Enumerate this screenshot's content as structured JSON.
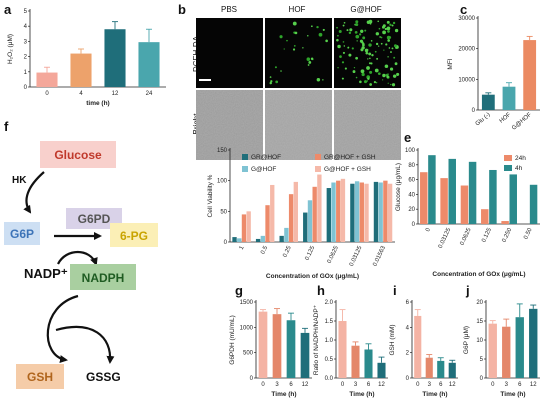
{
  "panels": {
    "a": "a",
    "b": "b",
    "c": "c",
    "d": "d",
    "e": "e",
    "f": "f",
    "g": "g",
    "h": "h",
    "i": "i",
    "j": "j"
  },
  "image_panel": {
    "columns": [
      "PBS",
      "HOF",
      "G@HOF"
    ],
    "rows": [
      "DCFH-DA",
      "Bright"
    ]
  },
  "pathway": {
    "glucose": "Glucose",
    "hk": "HK",
    "g6p": "G6P",
    "g6pd": "G6PD",
    "pg6": "6-PG",
    "nadp": "NADP⁺",
    "nadph": "NADPH",
    "gsh": "GSH",
    "gssg": "GSSG",
    "colors": {
      "glucose": "#f8d0cc",
      "g6pd": "#d9d2e8",
      "pg6": "#fbefb6",
      "g6p": "#cddff3",
      "nadph": "#a9cfa0",
      "gsh": "#f5cca8"
    }
  },
  "chart_data": [
    {
      "id": "a",
      "type": "bar",
      "categories": [
        "0",
        "4",
        "12",
        "24"
      ],
      "values": [
        0.95,
        2.2,
        3.8,
        2.95
      ],
      "errors": [
        0.35,
        0.3,
        0.5,
        0.85
      ],
      "colors": [
        "#f4a79a",
        "#eda26b",
        "#1f6e7a",
        "#4aa6ad"
      ],
      "xlabel": "time (h)",
      "ylabel": "H₂O₂ (μM)",
      "ylim": [
        0,
        5
      ],
      "yticks": [
        "0",
        "1",
        "2",
        "3",
        "4",
        "5"
      ]
    },
    {
      "id": "c",
      "type": "bar",
      "categories": [
        "Glu (-)",
        "HOF",
        "G@HOF"
      ],
      "values": [
        5000,
        7600,
        22800
      ],
      "errors": [
        600,
        1300,
        1200
      ],
      "colors": [
        "#1f6e7a",
        "#4aa6ad",
        "#eb8a62"
      ],
      "xlabel": "",
      "ylabel": "MFI",
      "ylim": [
        0,
        30000
      ],
      "yticks": [
        "0",
        "10000",
        "20000",
        "30000"
      ]
    },
    {
      "id": "d",
      "type": "bar",
      "categories": [
        "1",
        "0.5",
        "0.25",
        "0.125",
        "0.0625",
        "0.03125",
        "0.01563"
      ],
      "series": [
        {
          "name": "GR@HOF",
          "color": "#1f6e7a",
          "values": [
            8,
            5,
            10,
            48,
            88,
            95,
            98
          ]
        },
        {
          "name": "G@HOF",
          "color": "#7fc3d3",
          "values": [
            6,
            10,
            23,
            68,
            97,
            99,
            97
          ]
        },
        {
          "name": "GR@HOF + GSH",
          "color": "#ed8a6a",
          "values": [
            45,
            60,
            78,
            90,
            100,
            97,
            100
          ]
        },
        {
          "name": "G@HOF + GSH",
          "color": "#f5b9a9",
          "values": [
            50,
            93,
            98,
            110,
            103,
            95,
            95
          ]
        }
      ],
      "xlabel": "Concentration of GOx (μg/mL)",
      "ylabel": "Cell Viability %",
      "ylim": [
        0,
        150
      ],
      "yticks": [
        "0",
        "50",
        "100",
        "150"
      ]
    },
    {
      "id": "e",
      "type": "bar",
      "categories": [
        "0",
        "0.03125",
        "0.0625",
        "0.125",
        "0.250",
        "0.50"
      ],
      "series": [
        {
          "name": "24h",
          "color": "#ed8a6a",
          "values": [
            70,
            62,
            52,
            20,
            4,
            0
          ]
        },
        {
          "name": "4h",
          "color": "#2a8a8c",
          "values": [
            93,
            88,
            84,
            73,
            67,
            53
          ]
        }
      ],
      "xlabel": "Concentration of GOx (μg/mL)",
      "ylabel": "Glucose (μg/mL)",
      "ylim": [
        0,
        100
      ],
      "yticks": [
        "0",
        "20",
        "40",
        "60",
        "80",
        "100"
      ]
    },
    {
      "id": "g",
      "type": "bar",
      "categories": [
        "0",
        "3",
        "6",
        "12"
      ],
      "values": [
        1310,
        1260,
        1140,
        890
      ],
      "errors": [
        40,
        110,
        140,
        90
      ],
      "colors": [
        "#f4b3a4",
        "#e4876a",
        "#2a8a8c",
        "#1f6e7a"
      ],
      "xlabel": "Time (h)",
      "ylabel": "G6PDH (mU/mL)",
      "ylim": [
        0,
        1500
      ],
      "yticks": [
        "0",
        "500",
        "1000",
        "1500"
      ]
    },
    {
      "id": "h",
      "type": "bar",
      "categories": [
        "0",
        "3",
        "6",
        "12"
      ],
      "values": [
        1.5,
        0.85,
        0.75,
        0.4
      ],
      "errors": [
        0.3,
        0.1,
        0.15,
        0.15
      ],
      "colors": [
        "#f4b3a4",
        "#e4876a",
        "#2a8a8c",
        "#1f6e7a"
      ],
      "xlabel": "Time (h)",
      "ylabel": "Ratio of NADPH/NADP⁺",
      "ylim": [
        0,
        2.0
      ],
      "yticks": [
        "0.0",
        "0.5",
        "1.0",
        "1.5",
        "2.0"
      ]
    },
    {
      "id": "i",
      "type": "bar",
      "categories": [
        "0",
        "3",
        "6",
        "12"
      ],
      "values": [
        4.9,
        1.6,
        1.35,
        1.2
      ],
      "errors": [
        0.5,
        0.25,
        0.25,
        0.2
      ],
      "colors": [
        "#f4b3a4",
        "#e4876a",
        "#2a8a8c",
        "#1f6e7a"
      ],
      "xlabel": "Time (h)",
      "ylabel": "GSH (mM)",
      "ylim": [
        0,
        6
      ],
      "yticks": [
        "0",
        "2",
        "4",
        "6"
      ]
    },
    {
      "id": "j",
      "type": "bar",
      "categories": [
        "0",
        "3",
        "6",
        "12"
      ],
      "values": [
        14.3,
        13.5,
        16,
        18.2
      ],
      "errors": [
        0.8,
        2.0,
        3.5,
        1.0
      ],
      "colors": [
        "#f4b3a4",
        "#e4876a",
        "#2a8a8c",
        "#1f6e7a"
      ],
      "xlabel": "Time (h)",
      "ylabel": "G6P (μM)",
      "ylim": [
        0,
        20
      ],
      "yticks": [
        "0",
        "5",
        "10",
        "15",
        "20"
      ]
    }
  ]
}
